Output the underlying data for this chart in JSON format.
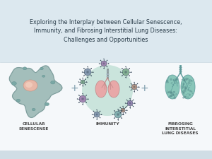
{
  "bg_color": "#e8f0f5",
  "title_bg_color": "#dce8ef",
  "bottom_bg_color": "#f5f8fa",
  "title_text": "Exploring the Interplay between Cellular Senescence,\nImmunity, and Fibrosing Interstitial Lung Diseases:\nChallenges and Opportunities",
  "title_fontsize": 5.8,
  "title_color": "#2a3d4a",
  "label1": "CELLULAR\nSENESCENSE",
  "label2": "IMMUNITY",
  "label3": "FIBROSING\nINTERSTITIAL\nLUNG DISEASES",
  "label_fontsize": 4.2,
  "label_color": "#444444",
  "plus_color": "#7a9aaa",
  "cell_color": "#9ab8b5",
  "cell_edge_color": "#7a9898",
  "cell_nucleus_color": "#e8b8a8",
  "cell_nucleus_edge": "#c89888",
  "lung_center_bg": "#a8d5c5",
  "lung_pink": "#e8a8a8",
  "lung_pink_edge": "#c08888",
  "lung2_color": "#7abfb0",
  "lung2_edge": "#5a9898",
  "trachea_color": "#8a9898",
  "virus_colors": [
    "#7a8fa8",
    "#9a7aaa",
    "#7aaa8a",
    "#aa8a7a",
    "#8a7aaa",
    "#7aaaaa"
  ],
  "divider_color": "#c5d5df"
}
